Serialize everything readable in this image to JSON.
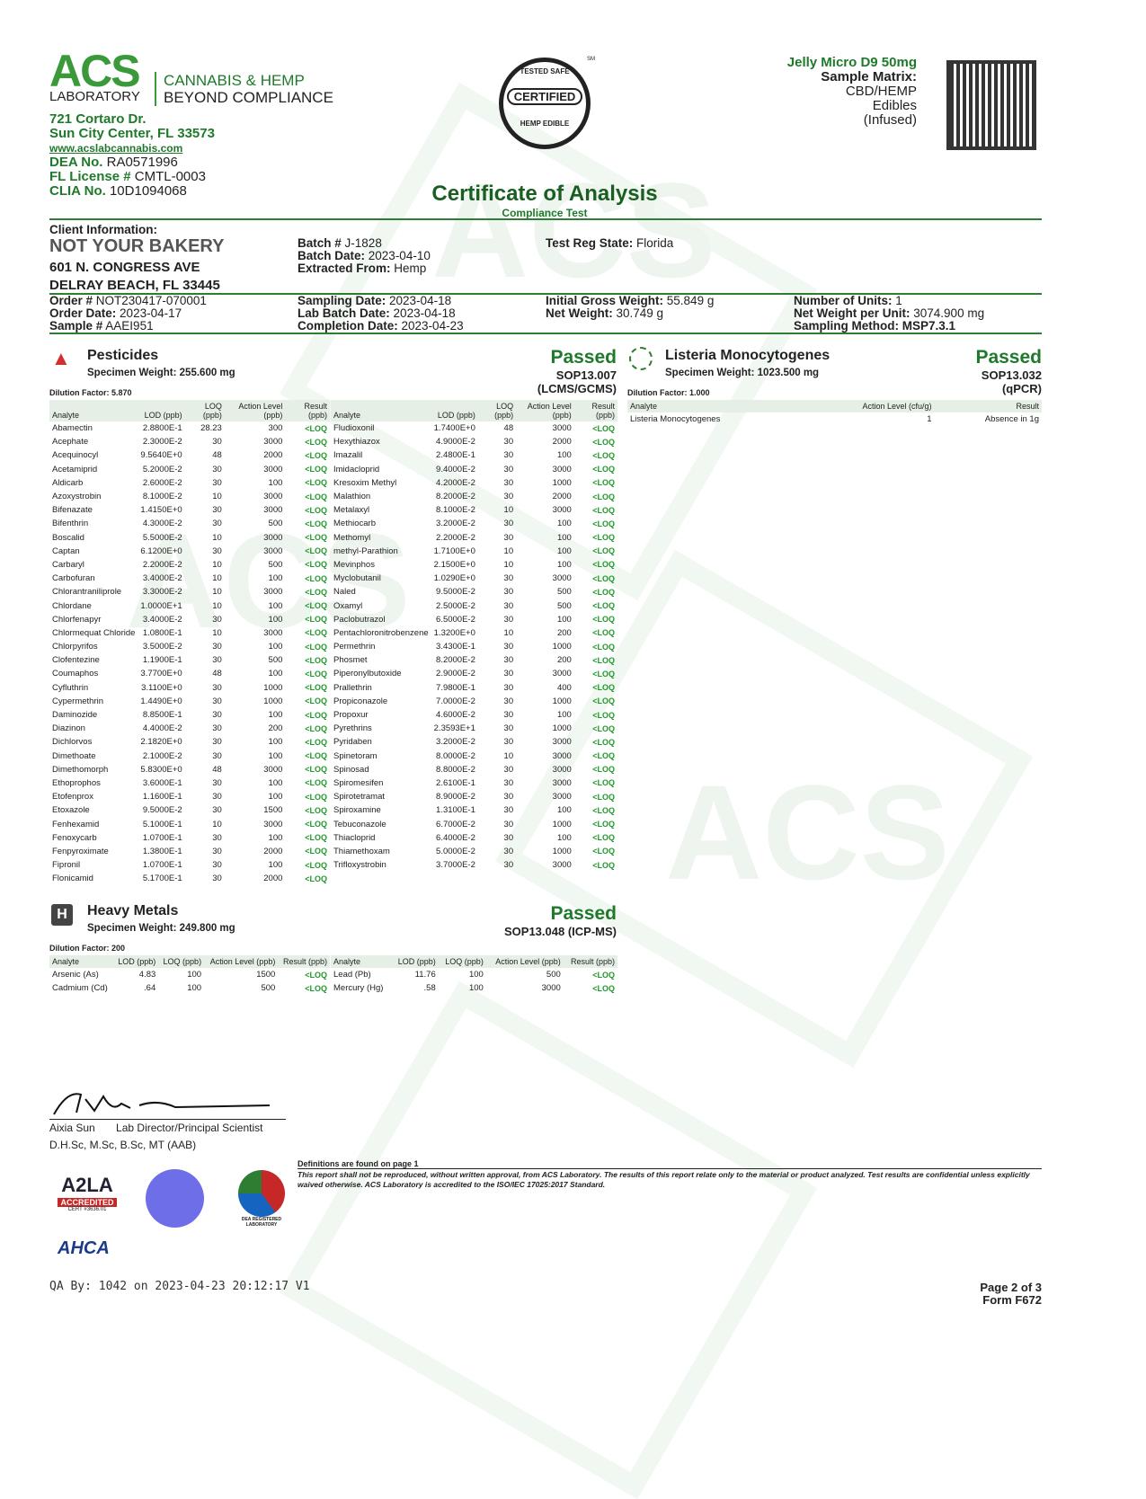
{
  "lab": {
    "logo_text": "ACS",
    "logo_sub": "LABORATORY",
    "tagline1": "CANNABIS & HEMP",
    "tagline2": "BEYOND COMPLIANCE",
    "address1": "721 Cortaro Dr.",
    "address2": "Sun City Center, FL 33573",
    "website": "www.acslabcannabis.com",
    "dea_label": "DEA No.",
    "dea": "RA0571996",
    "fl_label": "FL License #",
    "fl": "CMTL-0003",
    "clia_label": "CLIA No.",
    "clia": "10D1094068"
  },
  "seal": {
    "top": "TESTED SAFE",
    "center": "CERTIFIED",
    "bottom": "HEMP EDIBLE",
    "sm": "SM"
  },
  "product": {
    "name": "Jelly Micro D9 50mg",
    "matrix_label": "Sample Matrix:",
    "matrix1": "CBD/HEMP",
    "matrix2": "Edibles",
    "matrix3": "(Infused)"
  },
  "title": "Certificate of Analysis",
  "subtitle": "Compliance Test",
  "client": {
    "label": "Client Information:",
    "name": "NOT YOUR BAKERY",
    "addr1": "601 N. CONGRESS AVE",
    "addr2": "DELRAY BEACH, FL 33445"
  },
  "batch": {
    "batch_label": "Batch #",
    "batch": "J-1828",
    "date_label": "Batch Date:",
    "date": "2023-04-10",
    "extracted_label": "Extracted From:",
    "extracted": "Hemp",
    "state_label": "Test Reg State:",
    "state": "Florida"
  },
  "order": {
    "order_label": "Order #",
    "order": "NOT230417-070001",
    "order_date_label": "Order Date:",
    "order_date": "2023-04-17",
    "sample_label": "Sample #",
    "sample": "AAEI951",
    "sampling_label": "Sampling Date:",
    "sampling": "2023-04-18",
    "lab_batch_label": "Lab Batch Date:",
    "lab_batch": "2023-04-18",
    "completion_label": "Completion Date:",
    "completion": "2023-04-23",
    "gross_label": "Initial Gross Weight:",
    "gross": "55.849 g",
    "net_label": "Net Weight:",
    "net": "30.749 g",
    "units_label": "Number of Units:",
    "units": "1",
    "nwpu_label": "Net Weight per Unit:",
    "nwpu": "3074.900 mg",
    "method_label": "Sampling Method:",
    "method": "MSP7.3.1"
  },
  "pesticides": {
    "title": "Pesticides",
    "specimen": "Specimen Weight: 255.600 mg",
    "dilution": "Dilution Factor: 5.870",
    "status": "Passed",
    "sop1": "SOP13.007",
    "sop2": "(LCMS/GCMS)",
    "headers": [
      "Analyte",
      "LOD (ppb)",
      "LOQ (ppb)",
      "Action Level (ppb)",
      "Result (ppb)"
    ],
    "left": [
      [
        "Abamectin",
        "2.8800E-1",
        "28.23",
        "300",
        "<LOQ"
      ],
      [
        "Acephate",
        "2.3000E-2",
        "30",
        "3000",
        "<LOQ"
      ],
      [
        "Acequinocyl",
        "9.5640E+0",
        "48",
        "2000",
        "<LOQ"
      ],
      [
        "Acetamiprid",
        "5.2000E-2",
        "30",
        "3000",
        "<LOQ"
      ],
      [
        "Aldicarb",
        "2.6000E-2",
        "30",
        "100",
        "<LOQ"
      ],
      [
        "Azoxystrobin",
        "8.1000E-2",
        "10",
        "3000",
        "<LOQ"
      ],
      [
        "Bifenazate",
        "1.4150E+0",
        "30",
        "3000",
        "<LOQ"
      ],
      [
        "Bifenthrin",
        "4.3000E-2",
        "30",
        "500",
        "<LOQ"
      ],
      [
        "Boscalid",
        "5.5000E-2",
        "10",
        "3000",
        "<LOQ"
      ],
      [
        "Captan",
        "6.1200E+0",
        "30",
        "3000",
        "<LOQ"
      ],
      [
        "Carbaryl",
        "2.2000E-2",
        "10",
        "500",
        "<LOQ"
      ],
      [
        "Carbofuran",
        "3.4000E-2",
        "10",
        "100",
        "<LOQ"
      ],
      [
        "Chlorantraniliprole",
        "3.3000E-2",
        "10",
        "3000",
        "<LOQ"
      ],
      [
        "Chlordane",
        "1.0000E+1",
        "10",
        "100",
        "<LOQ"
      ],
      [
        "Chlorfenapyr",
        "3.4000E-2",
        "30",
        "100",
        "<LOQ"
      ],
      [
        "Chlormequat Chloride",
        "1.0800E-1",
        "10",
        "3000",
        "<LOQ"
      ],
      [
        "Chlorpyrifos",
        "3.5000E-2",
        "30",
        "100",
        "<LOQ"
      ],
      [
        "Clofentezine",
        "1.1900E-1",
        "30",
        "500",
        "<LOQ"
      ],
      [
        "Coumaphos",
        "3.7700E+0",
        "48",
        "100",
        "<LOQ"
      ],
      [
        "Cyfluthrin",
        "3.1100E+0",
        "30",
        "1000",
        "<LOQ"
      ],
      [
        "Cypermethrin",
        "1.4490E+0",
        "30",
        "1000",
        "<LOQ"
      ],
      [
        "Daminozide",
        "8.8500E-1",
        "30",
        "100",
        "<LOQ"
      ],
      [
        "Diazinon",
        "4.4000E-2",
        "30",
        "200",
        "<LOQ"
      ],
      [
        "Dichlorvos",
        "2.1820E+0",
        "30",
        "100",
        "<LOQ"
      ],
      [
        "Dimethoate",
        "2.1000E-2",
        "30",
        "100",
        "<LOQ"
      ],
      [
        "Dimethomorph",
        "5.8300E+0",
        "48",
        "3000",
        "<LOQ"
      ],
      [
        "Ethoprophos",
        "3.6000E-1",
        "30",
        "100",
        "<LOQ"
      ],
      [
        "Etofenprox",
        "1.1600E-1",
        "30",
        "100",
        "<LOQ"
      ],
      [
        "Etoxazole",
        "9.5000E-2",
        "30",
        "1500",
        "<LOQ"
      ],
      [
        "Fenhexamid",
        "5.1000E-1",
        "10",
        "3000",
        "<LOQ"
      ],
      [
        "Fenoxycarb",
        "1.0700E-1",
        "30",
        "100",
        "<LOQ"
      ],
      [
        "Fenpyroximate",
        "1.3800E-1",
        "30",
        "2000",
        "<LOQ"
      ],
      [
        "Fipronil",
        "1.0700E-1",
        "30",
        "100",
        "<LOQ"
      ],
      [
        "Flonicamid",
        "5.1700E-1",
        "30",
        "2000",
        "<LOQ"
      ]
    ],
    "right": [
      [
        "Fludioxonil",
        "1.7400E+0",
        "48",
        "3000",
        "<LOQ"
      ],
      [
        "Hexythiazox",
        "4.9000E-2",
        "30",
        "2000",
        "<LOQ"
      ],
      [
        "Imazalil",
        "2.4800E-1",
        "30",
        "100",
        "<LOQ"
      ],
      [
        "Imidacloprid",
        "9.4000E-2",
        "30",
        "3000",
        "<LOQ"
      ],
      [
        "Kresoxim Methyl",
        "4.2000E-2",
        "30",
        "1000",
        "<LOQ"
      ],
      [
        "Malathion",
        "8.2000E-2",
        "30",
        "2000",
        "<LOQ"
      ],
      [
        "Metalaxyl",
        "8.1000E-2",
        "10",
        "3000",
        "<LOQ"
      ],
      [
        "Methiocarb",
        "3.2000E-2",
        "30",
        "100",
        "<LOQ"
      ],
      [
        "Methomyl",
        "2.2000E-2",
        "30",
        "100",
        "<LOQ"
      ],
      [
        "methyl-Parathion",
        "1.7100E+0",
        "10",
        "100",
        "<LOQ"
      ],
      [
        "Mevinphos",
        "2.1500E+0",
        "10",
        "100",
        "<LOQ"
      ],
      [
        "Myclobutanil",
        "1.0290E+0",
        "30",
        "3000",
        "<LOQ"
      ],
      [
        "Naled",
        "9.5000E-2",
        "30",
        "500",
        "<LOQ"
      ],
      [
        "Oxamyl",
        "2.5000E-2",
        "30",
        "500",
        "<LOQ"
      ],
      [
        "Paclobutrazol",
        "6.5000E-2",
        "30",
        "100",
        "<LOQ"
      ],
      [
        "Pentachloronitrobenzene",
        "1.3200E+0",
        "10",
        "200",
        "<LOQ"
      ],
      [
        "Permethrin",
        "3.4300E-1",
        "30",
        "1000",
        "<LOQ"
      ],
      [
        "Phosmet",
        "8.2000E-2",
        "30",
        "200",
        "<LOQ"
      ],
      [
        "Piperonylbutoxide",
        "2.9000E-2",
        "30",
        "3000",
        "<LOQ"
      ],
      [
        "Prallethrin",
        "7.9800E-1",
        "30",
        "400",
        "<LOQ"
      ],
      [
        "Propiconazole",
        "7.0000E-2",
        "30",
        "1000",
        "<LOQ"
      ],
      [
        "Propoxur",
        "4.6000E-2",
        "30",
        "100",
        "<LOQ"
      ],
      [
        "Pyrethrins",
        "2.3593E+1",
        "30",
        "1000",
        "<LOQ"
      ],
      [
        "Pyridaben",
        "3.2000E-2",
        "30",
        "3000",
        "<LOQ"
      ],
      [
        "Spinetoram",
        "8.0000E-2",
        "10",
        "3000",
        "<LOQ"
      ],
      [
        "Spinosad",
        "8.8000E-2",
        "30",
        "3000",
        "<LOQ"
      ],
      [
        "Spiromesifen",
        "2.6100E-1",
        "30",
        "3000",
        "<LOQ"
      ],
      [
        "Spirotetramat",
        "8.9000E-2",
        "30",
        "3000",
        "<LOQ"
      ],
      [
        "Spiroxamine",
        "1.3100E-1",
        "30",
        "100",
        "<LOQ"
      ],
      [
        "Tebuconazole",
        "6.7000E-2",
        "30",
        "1000",
        "<LOQ"
      ],
      [
        "Thiacloprid",
        "6.4000E-2",
        "30",
        "100",
        "<LOQ"
      ],
      [
        "Thiamethoxam",
        "5.0000E-2",
        "30",
        "1000",
        "<LOQ"
      ],
      [
        "Trifloxystrobin",
        "3.7000E-2",
        "30",
        "3000",
        "<LOQ"
      ]
    ]
  },
  "listeria": {
    "title": "Listeria Monocytogenes",
    "specimen": "Specimen Weight: 1023.500 mg",
    "dilution": "Dilution Factor: 1.000",
    "status": "Passed",
    "sop1": "SOP13.032",
    "sop2": "(qPCR)",
    "headers": [
      "Analyte",
      "Action Level (cfu/g)",
      "Result"
    ],
    "rows": [
      [
        "Listeria Monocytogenes",
        "1",
        "Absence in 1g"
      ]
    ]
  },
  "metals": {
    "title": "Heavy Metals",
    "specimen": "Specimen Weight: 249.800 mg",
    "dilution": "Dilution Factor: 200",
    "status": "Passed",
    "sop": "SOP13.048 (ICP-MS)",
    "headers": [
      "Analyte",
      "LOD (ppb)",
      "LOQ (ppb)",
      "Action Level (ppb)",
      "Result (ppb)"
    ],
    "left": [
      [
        "Arsenic (As)",
        "4.83",
        "100",
        "1500",
        "<LOQ"
      ],
      [
        "Cadmium (Cd)",
        ".64",
        "100",
        "500",
        "<LOQ"
      ]
    ],
    "right": [
      [
        "Lead (Pb)",
        "11.76",
        "100",
        "500",
        "<LOQ"
      ],
      [
        "Mercury (Hg)",
        ".58",
        "100",
        "3000",
        "<LOQ"
      ]
    ]
  },
  "signature": {
    "name": "Aixia Sun",
    "role": "Lab Director/Principal Scientist",
    "credentials": "D.H.Sc, M.Sc, B.Sc, MT (AAB)"
  },
  "footer": {
    "definitions": "Definitions are found on page 1",
    "disclaimer": "This report shall not be reproduced, without written approval, from ACS Laboratory. The results of this report relate only to the material or product analyzed. Test results are confidential unless explicitly waived otherwise. ACS Laboratory is accredited to the ISO/IEC 17025:2017 Standard.",
    "a2la": "ACCREDITED",
    "a2la_cert": "CERT #3636.01",
    "ahca": "AHCA",
    "dea_reg": "DEA REGISTERED LABORATORY",
    "qa": "QA By: 1042 on 2023-04-23 20:12:17 V1",
    "page": "Page 2 of 3",
    "form": "Form F672"
  },
  "colors": {
    "brand_green": "#1e7a2a",
    "pass_green": "#1e9a2a"
  }
}
